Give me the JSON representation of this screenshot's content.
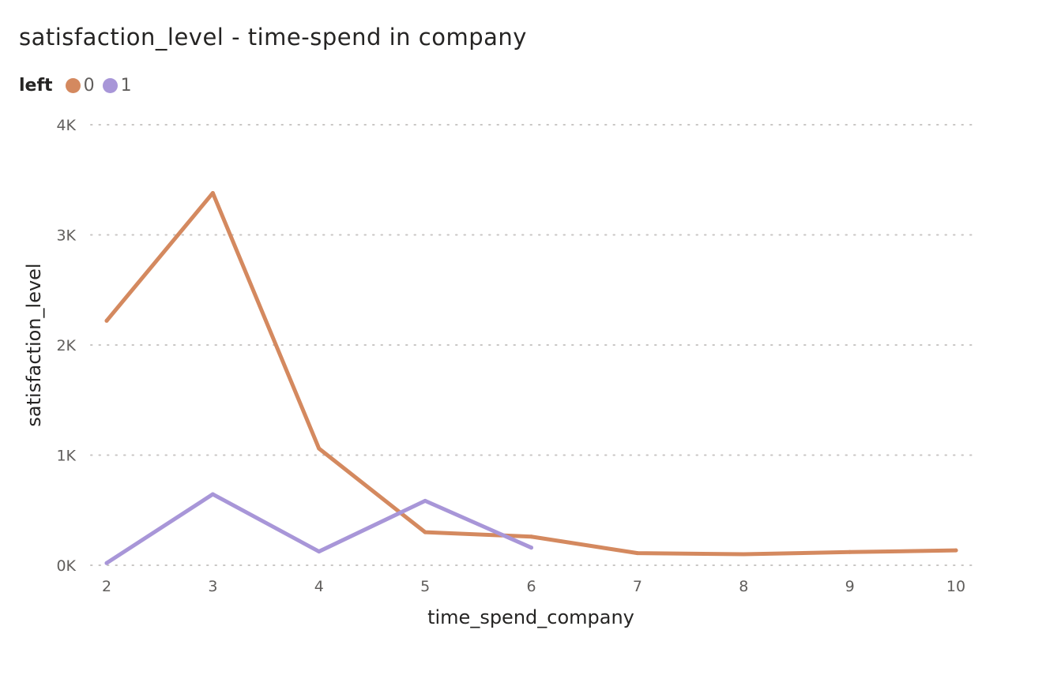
{
  "chart_data": {
    "type": "line",
    "title": "satisfaction_level - time-spend in company",
    "xlabel": "time_spend_company",
    "ylabel": "satisfaction_level",
    "legend": {
      "title": "left",
      "placement": "top-left",
      "entries": [
        "0",
        "1"
      ]
    },
    "x": [
      2,
      3,
      4,
      5,
      6,
      7,
      8,
      9,
      10
    ],
    "xtick_labels": [
      "2",
      "3",
      "4",
      "5",
      "6",
      "7",
      "8",
      "9",
      "10"
    ],
    "ytick_values": [
      0,
      1000,
      2000,
      3000,
      4000
    ],
    "ytick_labels": [
      "0K",
      "1K",
      "2K",
      "3K",
      "4K"
    ],
    "ylim": [
      0,
      4000
    ],
    "grid": true,
    "series": [
      {
        "name": "0",
        "color": "#D4895F",
        "x": [
          2,
          3,
          4,
          5,
          6,
          7,
          8,
          9,
          10
        ],
        "values": [
          2220,
          3380,
          1060,
          300,
          260,
          110,
          100,
          120,
          135
        ]
      },
      {
        "name": "1",
        "color": "#A896D8",
        "x": [
          2,
          3,
          4,
          5,
          6
        ],
        "values": [
          20,
          645,
          125,
          585,
          160
        ]
      }
    ]
  }
}
